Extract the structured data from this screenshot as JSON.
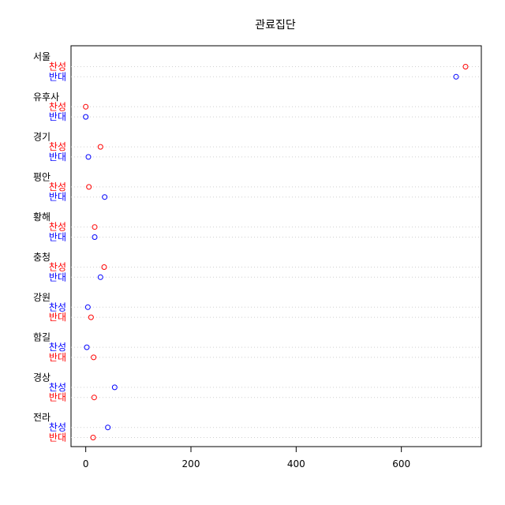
{
  "chart_data": {
    "type": "scatter",
    "subtype": "grouped dot chart",
    "title": "관료집단",
    "xlim": [
      -28,
      752
    ],
    "xticks": [
      0,
      200,
      400,
      600
    ],
    "grid": false,
    "colors": {
      "red": "#ff0000",
      "blue": "#0000ff"
    },
    "groups": [
      {
        "name": "서울",
        "rows": [
          {
            "label": "찬성",
            "value": 722,
            "color": "red"
          },
          {
            "label": "반대",
            "value": 704,
            "color": "blue"
          }
        ]
      },
      {
        "name": "유후사",
        "rows": [
          {
            "label": "찬성",
            "value": 0,
            "color": "red"
          },
          {
            "label": "반대",
            "value": 0,
            "color": "blue"
          }
        ]
      },
      {
        "name": "경기",
        "rows": [
          {
            "label": "찬성",
            "value": 28,
            "color": "red"
          },
          {
            "label": "반대",
            "value": 5,
            "color": "blue"
          }
        ]
      },
      {
        "name": "평안",
        "rows": [
          {
            "label": "찬성",
            "value": 6,
            "color": "red"
          },
          {
            "label": "반대",
            "value": 36,
            "color": "blue"
          }
        ]
      },
      {
        "name": "황해",
        "rows": [
          {
            "label": "찬성",
            "value": 17,
            "color": "red"
          },
          {
            "label": "반대",
            "value": 17,
            "color": "blue"
          }
        ]
      },
      {
        "name": "충청",
        "rows": [
          {
            "label": "찬성",
            "value": 35,
            "color": "red"
          },
          {
            "label": "반대",
            "value": 28,
            "color": "blue"
          }
        ]
      },
      {
        "name": "강원",
        "rows": [
          {
            "label": "찬성",
            "value": 4,
            "color": "blue"
          },
          {
            "label": "반대",
            "value": 10,
            "color": "red"
          }
        ]
      },
      {
        "name": "함길",
        "rows": [
          {
            "label": "찬성",
            "value": 2,
            "color": "blue"
          },
          {
            "label": "반대",
            "value": 15,
            "color": "red"
          }
        ]
      },
      {
        "name": "경상",
        "rows": [
          {
            "label": "찬성",
            "value": 55,
            "color": "blue"
          },
          {
            "label": "반대",
            "value": 16,
            "color": "red"
          }
        ]
      },
      {
        "name": "전라",
        "rows": [
          {
            "label": "찬성",
            "value": 42,
            "color": "blue"
          },
          {
            "label": "반대",
            "value": 14,
            "color": "red"
          }
        ]
      }
    ]
  }
}
